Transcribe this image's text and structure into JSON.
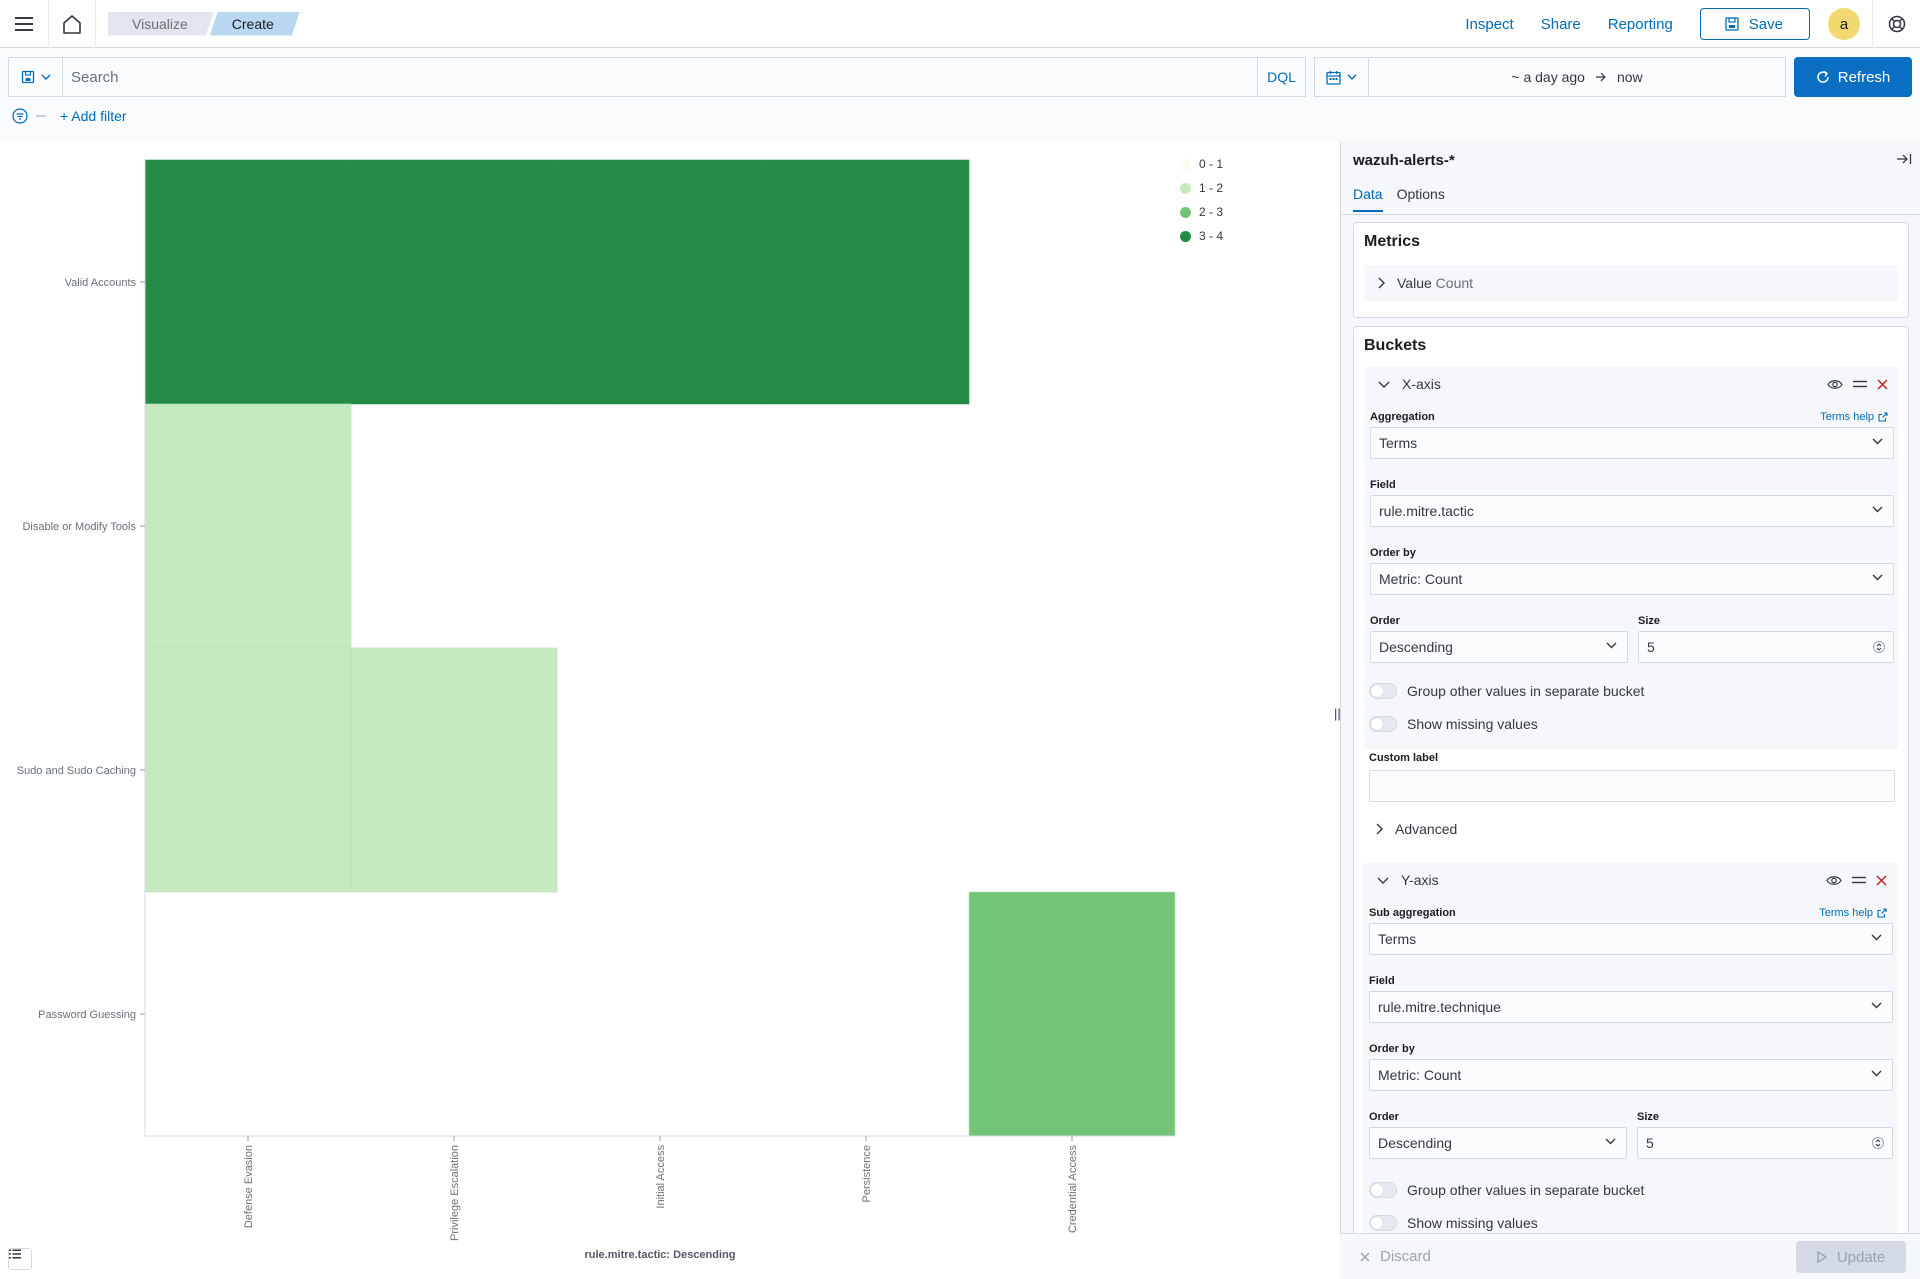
{
  "header": {
    "breadcrumbs": [
      "Visualize",
      "Create"
    ],
    "links": [
      "Inspect",
      "Share",
      "Reporting"
    ],
    "save_label": "Save",
    "avatar_initial": "a"
  },
  "query": {
    "search_placeholder": "Search",
    "language": "DQL",
    "date_start": "~ a day ago",
    "date_end": "now",
    "refresh_label": "Refresh",
    "add_filter_label": "+ Add filter"
  },
  "chart_data": {
    "type": "heatmap",
    "x_categories": [
      "Defense Evasion",
      "Privilege Escalation",
      "Initial Access",
      "Persistence",
      "Credential Access"
    ],
    "y_categories": [
      "Valid Accounts",
      "Disable or Modify Tools",
      "Sudo and Sudo Caching",
      "Password Guessing"
    ],
    "values": [
      [
        4,
        4,
        4,
        4,
        null
      ],
      [
        2,
        null,
        null,
        null,
        null
      ],
      [
        2,
        2,
        null,
        null,
        null
      ],
      [
        null,
        null,
        null,
        null,
        3
      ]
    ],
    "xlabel": "rule.mitre.tactic: Descending",
    "legend": [
      {
        "label": "0 - 1",
        "color": "#f7fcf5"
      },
      {
        "label": "1 - 2",
        "color": "#c7e9c0"
      },
      {
        "label": "2 - 3",
        "color": "#74c476"
      },
      {
        "label": "3 - 4",
        "color": "#238b45"
      }
    ],
    "legend_position": "top-right"
  },
  "sidebar": {
    "index_pattern": "wazuh-alerts-*",
    "tabs": [
      "Data",
      "Options"
    ],
    "metrics_title": "Metrics",
    "metric_item": {
      "name": "Value",
      "type": "Count"
    },
    "buckets_title": "Buckets",
    "xaxis": {
      "title": "X-axis",
      "aggregation_label": "Aggregation",
      "help_label": "Terms help",
      "aggregation": "Terms",
      "field_label": "Field",
      "field": "rule.mitre.tactic",
      "orderby_label": "Order by",
      "orderby": "Metric: Count",
      "order_label": "Order",
      "order": "Descending",
      "size_label": "Size",
      "size": "5",
      "group_other": "Group other values in separate bucket",
      "show_missing": "Show missing values",
      "custom_label": "Custom label",
      "advanced": "Advanced"
    },
    "yaxis": {
      "title": "Y-axis",
      "aggregation_label": "Sub aggregation",
      "help_label": "Terms help",
      "aggregation": "Terms",
      "field_label": "Field",
      "field": "rule.mitre.technique",
      "orderby_label": "Order by",
      "orderby": "Metric: Count",
      "order_label": "Order",
      "order": "Descending",
      "size_label": "Size",
      "size": "5",
      "group_other": "Group other values in separate bucket",
      "show_missing": "Show missing values"
    },
    "discard_label": "Discard",
    "update_label": "Update"
  }
}
